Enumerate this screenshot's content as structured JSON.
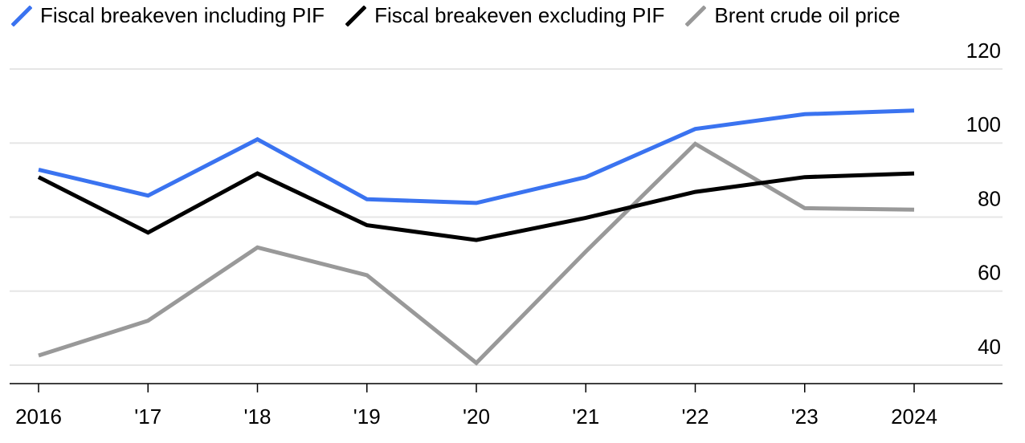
{
  "chart_data": {
    "type": "line",
    "x": [
      "2016",
      "'17",
      "'18",
      "'19",
      "'20",
      "'21",
      "'22",
      "'23",
      "2024"
    ],
    "series": [
      {
        "name": "Fiscal breakeven including PIF",
        "color": "#3a73f0",
        "values": [
          92.8,
          85.8,
          101.0,
          84.8,
          83.8,
          90.8,
          103.8,
          107.8,
          108.8
        ]
      },
      {
        "name": "Fiscal breakeven excluding PIF",
        "color": "#000000",
        "values": [
          90.8,
          75.8,
          91.8,
          77.8,
          73.8,
          79.8,
          86.8,
          90.8,
          91.8
        ]
      },
      {
        "name": "Brent crude oil price",
        "color": "#999999",
        "values": [
          42.6,
          52.0,
          71.8,
          64.3,
          40.6,
          70.7,
          99.8,
          82.4,
          82.0
        ]
      }
    ],
    "ylim": [
      35,
      120
    ],
    "yticks": [
      "40",
      "60",
      "80",
      "100",
      "120"
    ],
    "y_axis_side": "right",
    "grid": true,
    "legend": "top-left",
    "title": "",
    "xlabel": "",
    "ylabel": ""
  }
}
